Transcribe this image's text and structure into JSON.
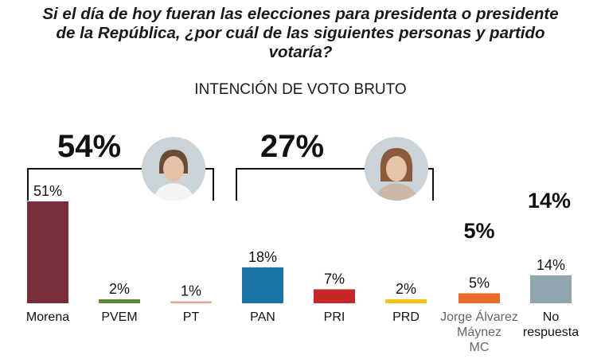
{
  "header": {
    "question": "Si el día de hoy fueran las elecciones para presidenta o presidente de la República, ¿por cuál de las siguientes personas y partido votaría?",
    "subtitle": "INTENCIÓN DE VOTO BRUTO"
  },
  "groups": [
    {
      "total_label": "54%",
      "members": [
        "Morena",
        "PVEM",
        "PT"
      ],
      "avatar_icon": "candidate-1-portrait-icon"
    },
    {
      "total_label": "27%",
      "members": [
        "PAN",
        "PRI",
        "PRD"
      ],
      "avatar_icon": "candidate-2-portrait-icon"
    },
    {
      "total_label": "5%",
      "members": [
        "Jorge Álvarez Máynez MC"
      ]
    },
    {
      "total_label": "14%",
      "members": [
        "No respuesta"
      ]
    }
  ],
  "chart_data": {
    "type": "bar",
    "title": "INTENCIÓN DE VOTO BRUTO",
    "xlabel": "",
    "ylabel": "",
    "ylim": [
      0,
      51
    ],
    "grid": false,
    "legend": "none",
    "categories": [
      "Morena",
      "PVEM",
      "PT",
      "PAN",
      "PRI",
      "PRD",
      "Jorge Álvarez Máynez MC",
      "No respuesta"
    ],
    "category_lines": [
      [
        "Morena"
      ],
      [
        "PVEM"
      ],
      [
        "PT"
      ],
      [
        "PAN"
      ],
      [
        "PRI"
      ],
      [
        "PRD"
      ],
      [
        "Jorge Álvarez",
        "Máynez",
        "MC"
      ],
      [
        "No",
        "respuesta"
      ]
    ],
    "values": [
      51,
      2,
      1,
      18,
      7,
      2,
      5,
      14
    ],
    "value_labels": [
      "51%",
      "2%",
      "1%",
      "18%",
      "7%",
      "2%",
      "5%",
      "14%"
    ],
    "colors": [
      "#7a2e3a",
      "#5f8a3a",
      "#e6a692",
      "#1a73a6",
      "#c62828",
      "#f2c318",
      "#e86b2c",
      "#8fa4ad"
    ]
  }
}
